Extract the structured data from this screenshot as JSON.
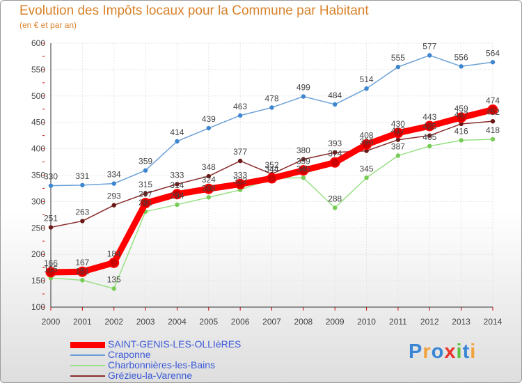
{
  "chart_data": {
    "type": "line",
    "title": "Evolution des Impôts locaux pour la Commune par Habitant",
    "subtitle": "(en € et par an)",
    "xlabel": "",
    "ylabel": "",
    "x": [
      "2000",
      "2001",
      "2002",
      "2003",
      "2004",
      "2005",
      "2006",
      "2007",
      "2008",
      "2009",
      "2010",
      "2011",
      "2012",
      "2013",
      "2014"
    ],
    "ylim": [
      100,
      600
    ],
    "yticks": [
      100,
      150,
      200,
      250,
      300,
      350,
      400,
      450,
      500,
      550,
      600
    ],
    "grid": true,
    "legend_position": "bottom-left",
    "series": [
      {
        "name": "SAINT-GENIS-LES-OLLIèRES",
        "color": "#ff0000",
        "marker": "#cc0000",
        "values": [
          166,
          167,
          184,
          297,
          314,
          324,
          333,
          344,
          359,
          374,
          408,
          430,
          443,
          459,
          474
        ]
      },
      {
        "name": "Craponne",
        "color": "#6aa0d8",
        "marker": "#3f86d0",
        "values": [
          330,
          331,
          334,
          359,
          414,
          439,
          463,
          478,
          499,
          484,
          514,
          555,
          577,
          556,
          564
        ]
      },
      {
        "name": "Charbonnières-les-Bains",
        "color": "#99e085",
        "marker": "#77cc55",
        "values": [
          155,
          151,
          135,
          281,
          294,
          308,
          322,
          344,
          345,
          288,
          345,
          387,
          405,
          416,
          418
        ]
      },
      {
        "name": "Grézieu-la-Varenne",
        "color": "#8a2b2b",
        "marker": "#6b1818",
        "values": [
          251,
          263,
          293,
          315,
          333,
          348,
          377,
          352,
          380,
          393,
          396,
          417,
          425,
          447,
          452
        ]
      }
    ]
  },
  "logo": {
    "text": "Proxiti"
  }
}
